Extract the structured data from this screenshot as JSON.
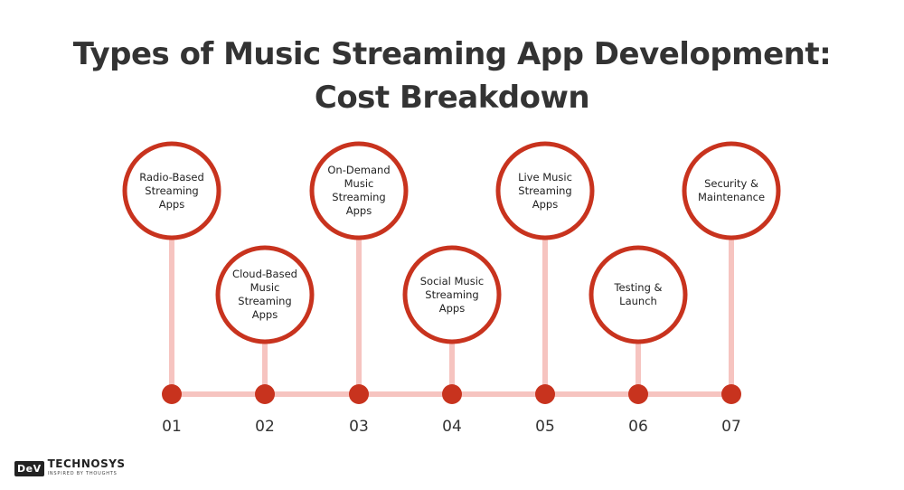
{
  "title": {
    "line1": "Types of Music Streaming App Development:",
    "line2": "Cost Breakdown"
  },
  "steps": [
    {
      "number": "01",
      "label": "Radio-Based Streaming Apps",
      "position": "top"
    },
    {
      "number": "02",
      "label": "Cloud-Based Music Streaming Apps",
      "position": "bottom"
    },
    {
      "number": "03",
      "label": "On-Demand Music Streaming Apps",
      "position": "top"
    },
    {
      "number": "04",
      "label": "Social Music Streaming Apps",
      "position": "bottom"
    },
    {
      "number": "05",
      "label": "Live Music Streaming Apps",
      "position": "top"
    },
    {
      "number": "06",
      "label": "Testing & Launch",
      "position": "bottom"
    },
    {
      "number": "07",
      "label": "Security & Maintenance",
      "position": "top"
    }
  ],
  "logo": {
    "dev": "DeV",
    "name": "TECHNOSYS",
    "tagline": "INSPIRED BY THOUGHTS"
  },
  "colors": {
    "accent": "#c8331e",
    "connector": "#f6c4c0",
    "text": "#333333"
  }
}
